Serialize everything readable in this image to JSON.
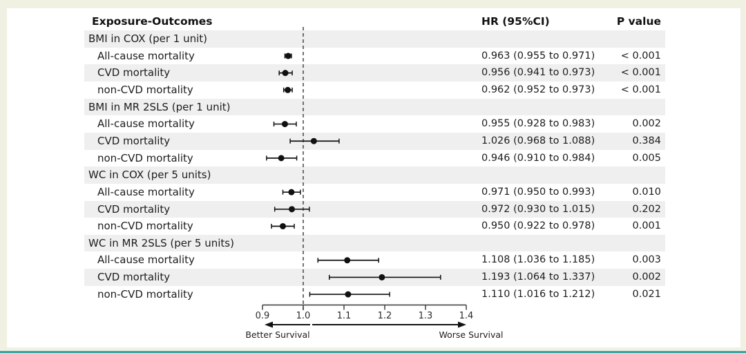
{
  "header": {
    "exposure_col": "Exposure-Outcomes",
    "hr_col": "HR (95%CI)",
    "p_col": "P value"
  },
  "colors": {
    "page_background": "#f0f0e3",
    "card_background": "#ffffff",
    "stripe": "#efefef",
    "text": "#1c1c1c",
    "marker": "#111111",
    "axis": "#333333",
    "reference_line": "#444444",
    "bottom_accent": "#3aa6a4"
  },
  "chart_data": {
    "type": "forest",
    "axis": {
      "ticks": [
        0.9,
        1.0,
        1.1,
        1.2,
        1.3,
        1.4
      ],
      "tick_labels": [
        "0.9",
        "1.0",
        "1.1",
        "1.2",
        "1.3",
        "1.4"
      ],
      "xlim": [
        0.9,
        1.4
      ],
      "reference_line": 1.0
    },
    "direction_labels": {
      "left": "Better Survival",
      "right": "Worse Survival"
    },
    "rows": [
      {
        "kind": "group",
        "label": "BMI in COX (per 1 unit)"
      },
      {
        "kind": "item",
        "label": "All-cause mortality",
        "hr": 0.963,
        "lo": 0.955,
        "hi": 0.971,
        "hr_text": "0.963 (0.955 to 0.971)",
        "p_text": "< 0.001"
      },
      {
        "kind": "item",
        "label": "CVD mortality",
        "hr": 0.956,
        "lo": 0.941,
        "hi": 0.973,
        "hr_text": "0.956 (0.941 to 0.973)",
        "p_text": "< 0.001"
      },
      {
        "kind": "item",
        "label": "non-CVD mortality",
        "hr": 0.962,
        "lo": 0.952,
        "hi": 0.973,
        "hr_text": "0.962 (0.952 to 0.973)",
        "p_text": "< 0.001"
      },
      {
        "kind": "group",
        "label": "BMI in MR 2SLS (per 1 unit)"
      },
      {
        "kind": "item",
        "label": "All-cause mortality",
        "hr": 0.955,
        "lo": 0.928,
        "hi": 0.983,
        "hr_text": "0.955 (0.928 to 0.983)",
        "p_text": "0.002"
      },
      {
        "kind": "item",
        "label": "CVD mortality",
        "hr": 1.026,
        "lo": 0.968,
        "hi": 1.088,
        "hr_text": "1.026 (0.968 to 1.088)",
        "p_text": "0.384"
      },
      {
        "kind": "item",
        "label": "non-CVD mortality",
        "hr": 0.946,
        "lo": 0.91,
        "hi": 0.984,
        "hr_text": "0.946 (0.910 to 0.984)",
        "p_text": "0.005"
      },
      {
        "kind": "group",
        "label": "WC in COX (per 5 units)"
      },
      {
        "kind": "item",
        "label": "All-cause mortality",
        "hr": 0.971,
        "lo": 0.95,
        "hi": 0.993,
        "hr_text": "0.971 (0.950 to 0.993)",
        "p_text": "0.010"
      },
      {
        "kind": "item",
        "label": "CVD mortality",
        "hr": 0.972,
        "lo": 0.93,
        "hi": 1.015,
        "hr_text": "0.972 (0.930 to 1.015)",
        "p_text": "0.202"
      },
      {
        "kind": "item",
        "label": "non-CVD mortality",
        "hr": 0.95,
        "lo": 0.922,
        "hi": 0.978,
        "hr_text": "0.950 (0.922 to 0.978)",
        "p_text": "0.001"
      },
      {
        "kind": "group",
        "label": "WC in MR 2SLS (per 5 units)"
      },
      {
        "kind": "item",
        "label": "All-cause mortality",
        "hr": 1.108,
        "lo": 1.036,
        "hi": 1.185,
        "hr_text": "1.108 (1.036 to 1.185)",
        "p_text": "0.003"
      },
      {
        "kind": "item",
        "label": "CVD mortality",
        "hr": 1.193,
        "lo": 1.064,
        "hi": 1.337,
        "hr_text": "1.193 (1.064 to 1.337)",
        "p_text": "0.002"
      },
      {
        "kind": "item",
        "label": "non-CVD mortality",
        "hr": 1.11,
        "lo": 1.016,
        "hi": 1.212,
        "hr_text": "1.110 (1.016 to 1.212)",
        "p_text": "0.021"
      }
    ]
  }
}
